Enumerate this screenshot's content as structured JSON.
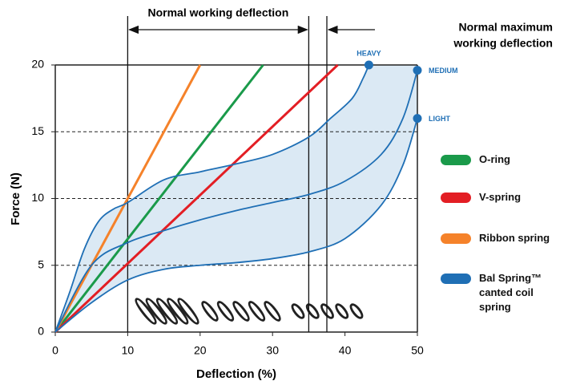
{
  "chart_data": {
    "type": "line",
    "xlabel": "Deflection (%)",
    "ylabel": "Force (N)",
    "xlim": [
      0,
      50
    ],
    "ylim": [
      0,
      20
    ],
    "xticks": [
      0,
      10,
      20,
      30,
      40,
      50
    ],
    "yticks": [
      0,
      5,
      10,
      15,
      20
    ],
    "grid_y": [
      5,
      10,
      15
    ],
    "annotations": [
      {
        "text": [
          "Normal working deflection"
        ],
        "x_from": 10,
        "x_to": 35
      },
      {
        "text": [
          "Normal maximum",
          "working deflection"
        ],
        "x": 37.5
      }
    ],
    "series": [
      {
        "name": "O-ring",
        "color": "#1a9a4a",
        "x": [
          0,
          28.7
        ],
        "values": [
          0,
          20
        ]
      },
      {
        "name": "V-spring",
        "color": "#e31e24",
        "x": [
          0,
          39
        ],
        "values": [
          0,
          20
        ]
      },
      {
        "name": "Ribbon spring",
        "color": "#f5822a",
        "x": [
          0,
          20
        ],
        "values": [
          0,
          20
        ]
      },
      {
        "name": "Bal Spring™ canted coil spring",
        "color": "#1f6fb5",
        "curves": [
          {
            "label": "HEAVY",
            "x": [
              0,
              2,
              4,
              6,
              8,
              10,
              15,
              20,
              25,
              30,
              35,
              38,
              41,
              42.5,
              43.3
            ],
            "values": [
              0,
              3,
              6.2,
              8.3,
              9.2,
              9.7,
              11.4,
              12,
              12.6,
              13.3,
              14.6,
              16,
              17.5,
              19,
              20
            ]
          },
          {
            "label": "MEDIUM",
            "x": [
              0,
              5,
              10,
              15,
              20,
              25,
              30,
              35,
              40,
              45,
              48,
              50
            ],
            "values": [
              0,
              5,
              6.7,
              7.6,
              8.4,
              9.1,
              9.7,
              10.3,
              11.3,
              13.3,
              16,
              19.6
            ]
          },
          {
            "label": "LIGHT",
            "x": [
              0,
              5,
              10,
              15,
              20,
              25,
              30,
              35,
              40,
              45,
              48,
              50
            ],
            "values": [
              0,
              2.2,
              3.9,
              4.7,
              5,
              5.2,
              5.5,
              6,
              7,
              9.5,
              12.5,
              16
            ]
          }
        ]
      }
    ]
  }
}
